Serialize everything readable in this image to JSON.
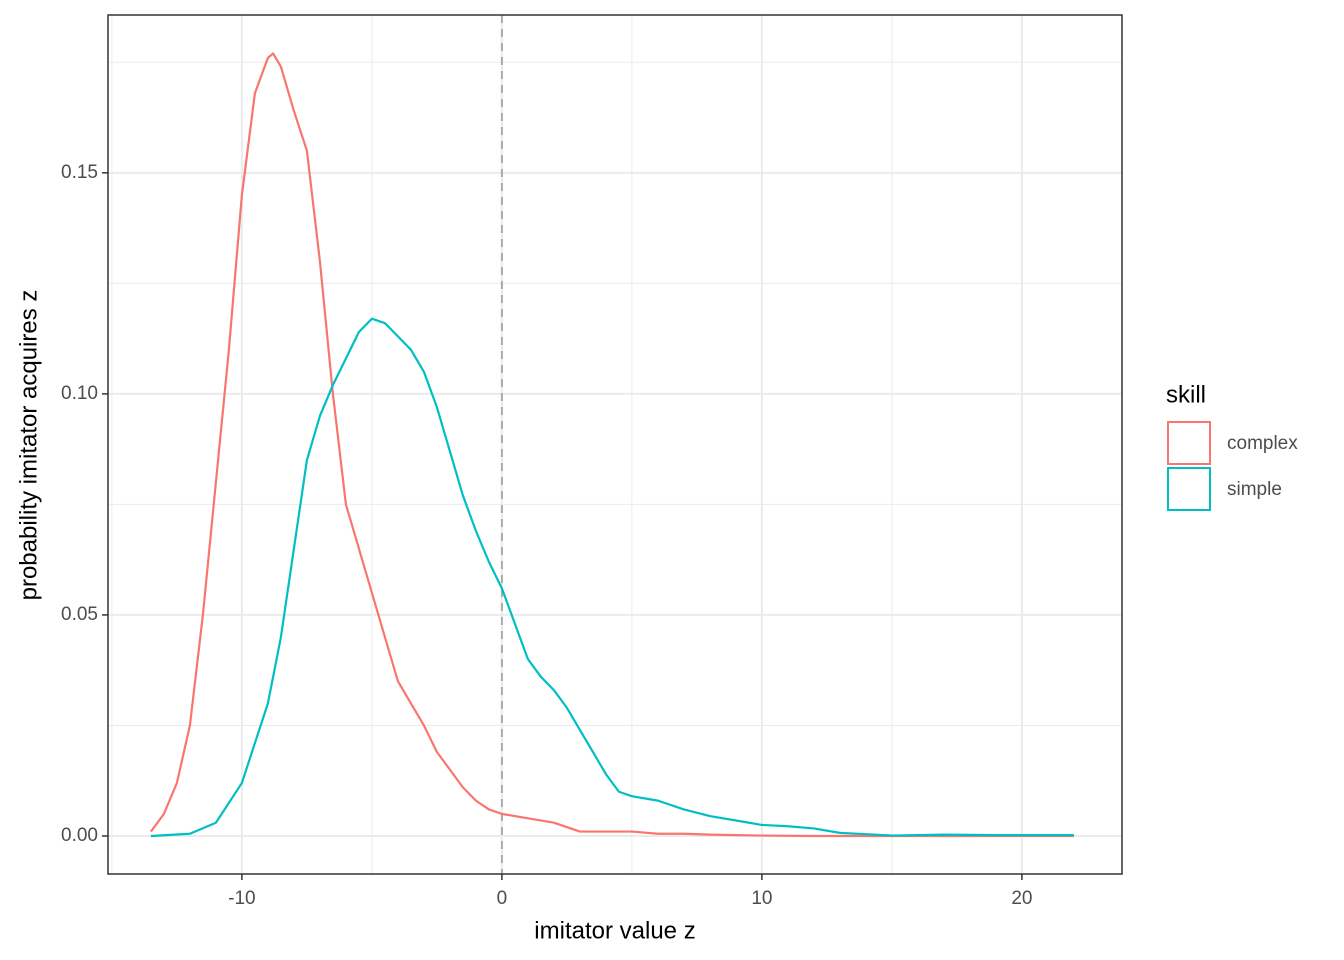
{
  "chart_data": {
    "type": "line",
    "xlabel": "imitator value z",
    "ylabel": "probability imitator acquires z",
    "legend_title": "skill",
    "legend_position": "right",
    "grid": true,
    "xlim": [
      -15.15,
      23.85
    ],
    "ylim": [
      -0.0086,
      0.1857
    ],
    "xticks": [
      -10,
      0,
      10,
      20
    ],
    "yticks": [
      {
        "value": 0,
        "label": "0.00"
      },
      0.05,
      {
        "value": 0.1,
        "label": "0.10"
      },
      0.15
    ],
    "xminorticks": [
      -15,
      -5,
      5,
      15
    ],
    "yminorticks": [
      0.025,
      0.075,
      0.125,
      0.175
    ],
    "vline": 0,
    "series": [
      {
        "name": "complex",
        "color": "#f8766d",
        "x": [
          -13.5,
          -13,
          -12.5,
          -12,
          -11.5,
          -11,
          -10.5,
          -10,
          -9.5,
          -9,
          -8.8,
          -8.5,
          -8,
          -7.5,
          -7,
          -6.5,
          -6,
          -5.5,
          -5,
          -4.5,
          -4,
          -3.5,
          -3,
          -2.5,
          -2,
          -1.5,
          -1,
          -0.5,
          0,
          1,
          2,
          3,
          4,
          5,
          6,
          7,
          8,
          10,
          12,
          15,
          20,
          22
        ],
        "values": [
          0.001,
          0.005,
          0.012,
          0.025,
          0.05,
          0.08,
          0.11,
          0.145,
          0.168,
          0.176,
          0.177,
          0.174,
          0.164,
          0.155,
          0.13,
          0.1,
          0.075,
          0.065,
          0.055,
          0.045,
          0.035,
          0.03,
          0.025,
          0.019,
          0.015,
          0.011,
          0.008,
          0.006,
          0.005,
          0.004,
          0.003,
          0.001,
          0.001,
          0.001,
          0.0005,
          0.0005,
          0.0003,
          0.0001,
          0,
          0,
          0,
          0
        ]
      },
      {
        "name": "simple",
        "color": "#00bfc4",
        "x": [
          -13.5,
          -12,
          -11,
          -10,
          -9,
          -8.5,
          -8,
          -7.5,
          -7,
          -6.5,
          -6,
          -5.5,
          -5,
          -4.5,
          -4,
          -3.5,
          -3,
          -2.5,
          -2,
          -1.5,
          -1,
          -0.5,
          0,
          0.5,
          1,
          1.5,
          2,
          2.5,
          3,
          3.5,
          4,
          4.5,
          5,
          6,
          7,
          8,
          9,
          10,
          11,
          12,
          13,
          14,
          15,
          17,
          19,
          22
        ],
        "values": [
          0,
          0.0005,
          0.003,
          0.012,
          0.03,
          0.045,
          0.065,
          0.085,
          0.095,
          0.102,
          0.108,
          0.114,
          0.117,
          0.116,
          0.113,
          0.11,
          0.105,
          0.097,
          0.087,
          0.077,
          0.069,
          0.062,
          0.056,
          0.048,
          0.04,
          0.036,
          0.033,
          0.029,
          0.024,
          0.019,
          0.014,
          0.01,
          0.009,
          0.008,
          0.006,
          0.0045,
          0.0035,
          0.0025,
          0.0022,
          0.0017,
          0.0007,
          0.0004,
          0.0001,
          0.0003,
          0.0002,
          0.0002
        ]
      }
    ]
  }
}
